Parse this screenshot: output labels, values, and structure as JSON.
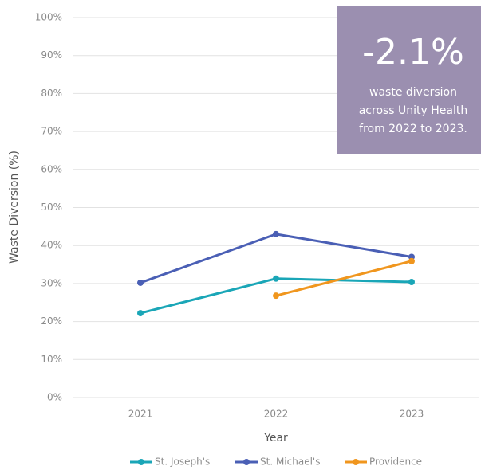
{
  "chart_data": {
    "type": "line",
    "y_label": "Waste Diversion (%)",
    "x_label": "Year",
    "categories": [
      "2021",
      "2022",
      "2023"
    ],
    "series": [
      {
        "name": "St. Joseph's",
        "color": "#1aa6b7",
        "values": [
          22.2,
          31.3,
          30.4
        ]
      },
      {
        "name": "St. Michael's",
        "color": "#4a5fb5",
        "values": [
          30.2,
          43.0,
          37.0
        ]
      },
      {
        "name": "Providence",
        "color": "#f0961e",
        "values": [
          null,
          26.8,
          35.9
        ]
      }
    ],
    "ylim": [
      0,
      100
    ],
    "yticks": [
      {
        "value": 0,
        "label": "0%"
      },
      {
        "value": 10,
        "label": "10%"
      },
      {
        "value": 20,
        "label": "20%"
      },
      {
        "value": 30,
        "label": "30%"
      },
      {
        "value": 40,
        "label": "40%"
      },
      {
        "value": 50,
        "label": "50%"
      },
      {
        "value": 60,
        "label": "60%"
      },
      {
        "value": 70,
        "label": "70%"
      },
      {
        "value": 80,
        "label": "80%"
      },
      {
        "value": 90,
        "label": "90%"
      },
      {
        "value": 100,
        "label": "100%"
      }
    ],
    "grid": true,
    "legend": "bottom",
    "annotation": {
      "headline": "-2.1%",
      "lines": [
        "waste diversion",
        "across Unity Health",
        "from 2022 to 2023."
      ],
      "color": "#9b8fb0"
    }
  }
}
